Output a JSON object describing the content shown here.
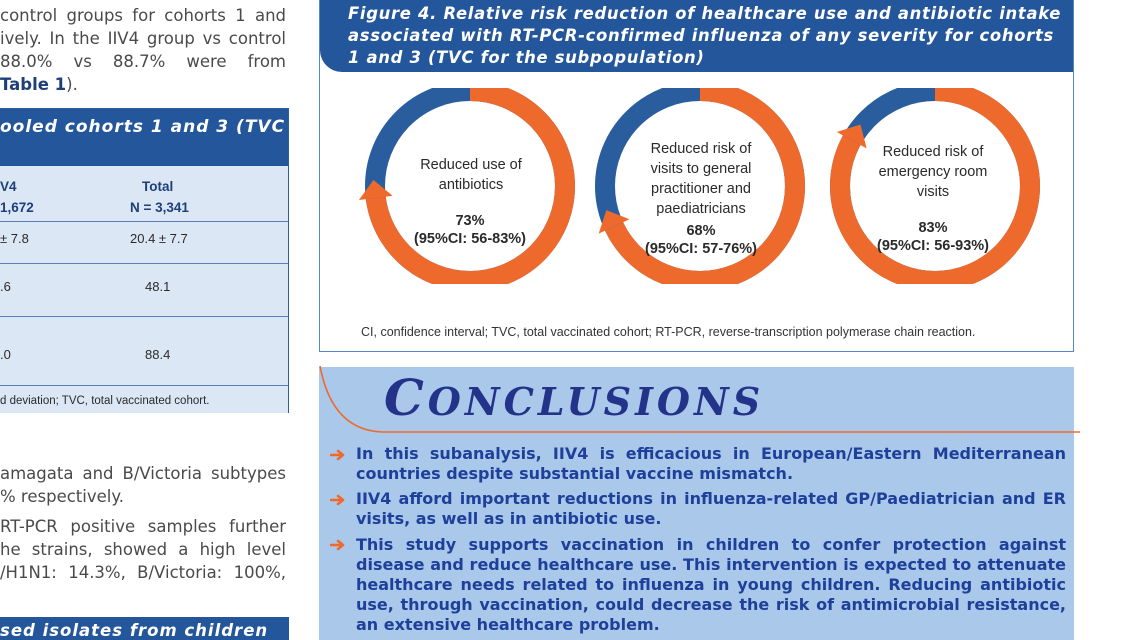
{
  "left": {
    "para1": [
      "control groups for cohorts 1 and",
      "ively. In the IIV4 group vs control",
      " 88.0%  vs  88.7%  were  from"
    ],
    "para1_end_prefix": "",
    "para1_end_bold": "Table 1",
    "para1_end_suffix": ").",
    "table": {
      "title": "ooled cohorts 1 and 3 (TVC",
      "col1_header_line1": "V4",
      "col1_header_line2": "1,672",
      "col2_header_line1": "Total",
      "col2_header_line2": "N = 3,341",
      "rows": [
        {
          "c1": "± 7.8",
          "c2": "20.4 ± 7.7"
        },
        {
          "c1": ".6",
          "c2": "48.1"
        },
        {
          "c1": ".0",
          "c2": "88.4"
        }
      ],
      "footnote": "d deviation; TVC, total vaccinated cohort."
    },
    "para2": [
      "amagata and B/Victoria subtypes",
      "% respectively."
    ],
    "para3": [
      "RT-PCR  positive  samples  further",
      "he  strains,  showed  a  high  level",
      "/H1N1: 14.3%, B/Victoria: 100%,"
    ],
    "section_bar": "sed isolates from children"
  },
  "figure": {
    "caption": "Figure 4. Relative risk reduction of healthcare use and antibiotic intake associated with RT-PCR-confirmed influenza of any severity for cohorts 1 and 3 (TVC for the subpopulation)",
    "donuts": [
      {
        "label": [
          "Reduced use of",
          "antibiotics"
        ],
        "value": "73%",
        "ci": "(95%CI: 56-83%)",
        "reduction": 0.73
      },
      {
        "label": [
          "Reduced risk of",
          "visits to general",
          "practitioner and",
          "paediatricians"
        ],
        "value": "68%",
        "ci": "(95%CI: 57-76%)",
        "reduction": 0.68
      },
      {
        "label": [
          "Reduced risk of",
          "emergency room",
          "visits"
        ],
        "value": "83%",
        "ci": "(95%CI: 56-93%)",
        "reduction": 0.83
      }
    ],
    "note": "CI, confidence interval; TVC, total vaccinated cohort; RT-PCR, reverse-transcription polymerase chain reaction.",
    "colors": {
      "reduction": "#ee6a2c",
      "remaining": "#2a5d9e"
    }
  },
  "conclusions": {
    "title_initial": "C",
    "title_rest": "ONCLUSIONS",
    "bullets": [
      "In this subanalysis, IIV4 is efficacious in European/Eastern Mediterranean countries despite substantial vaccine mismatch.",
      "IIV4 afford important reductions in influenza-related GP/Paediatrician and ER visits, as well as in antibiotic use.",
      "This study supports vaccination in children to confer protection against disease and reduce healthcare use. This intervention is expected to attenuate healthcare needs related to influenza in young children. Reducing antibiotic use, through vaccination, could decrease the risk of antimicrobial resistance, an extensive healthcare problem."
    ],
    "colors": {
      "panel": "#a9c8ea",
      "title": "#23338a",
      "bullet_text": "#1e3f9a",
      "arrow": "#ee6a2c"
    }
  }
}
